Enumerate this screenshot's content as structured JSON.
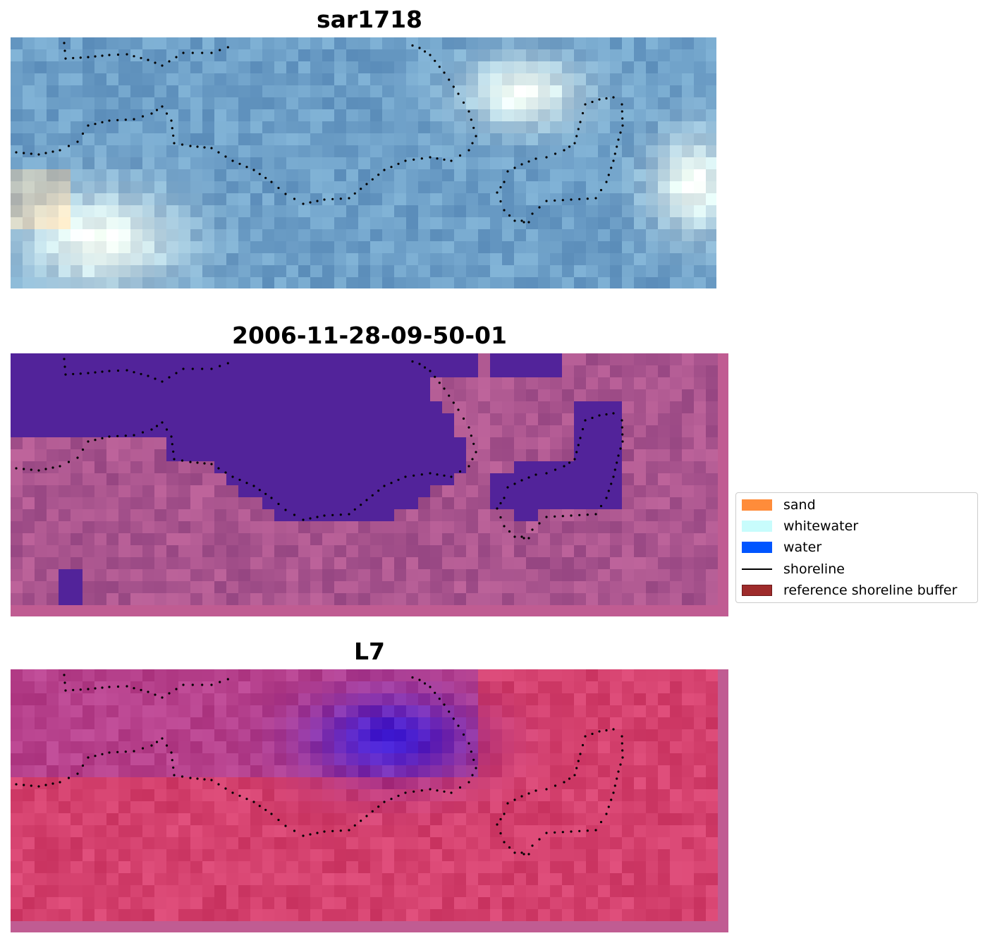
{
  "panels": [
    {
      "title": "sar1718",
      "style": "rgb"
    },
    {
      "title": "2006-11-28-09-50-01",
      "style": "classified"
    },
    {
      "title": "L7",
      "style": "index"
    }
  ],
  "legend": {
    "items": [
      {
        "label": "sand",
        "kind": "patch",
        "color": "#ff8c3a"
      },
      {
        "label": "whitewater",
        "kind": "patch",
        "color": "#c8fcfc"
      },
      {
        "label": "water",
        "kind": "patch",
        "color": "#0055ff"
      },
      {
        "label": "shoreline",
        "kind": "line",
        "color": "#000000"
      },
      {
        "label": "reference shoreline buffer",
        "kind": "patch",
        "color": "#9e2b2b",
        "edge": "#6e1a1a"
      }
    ]
  },
  "colors": {
    "classified_water": "#52239a",
    "classified_buffer": "#c05c92",
    "index_buffer": "#c05c92"
  }
}
